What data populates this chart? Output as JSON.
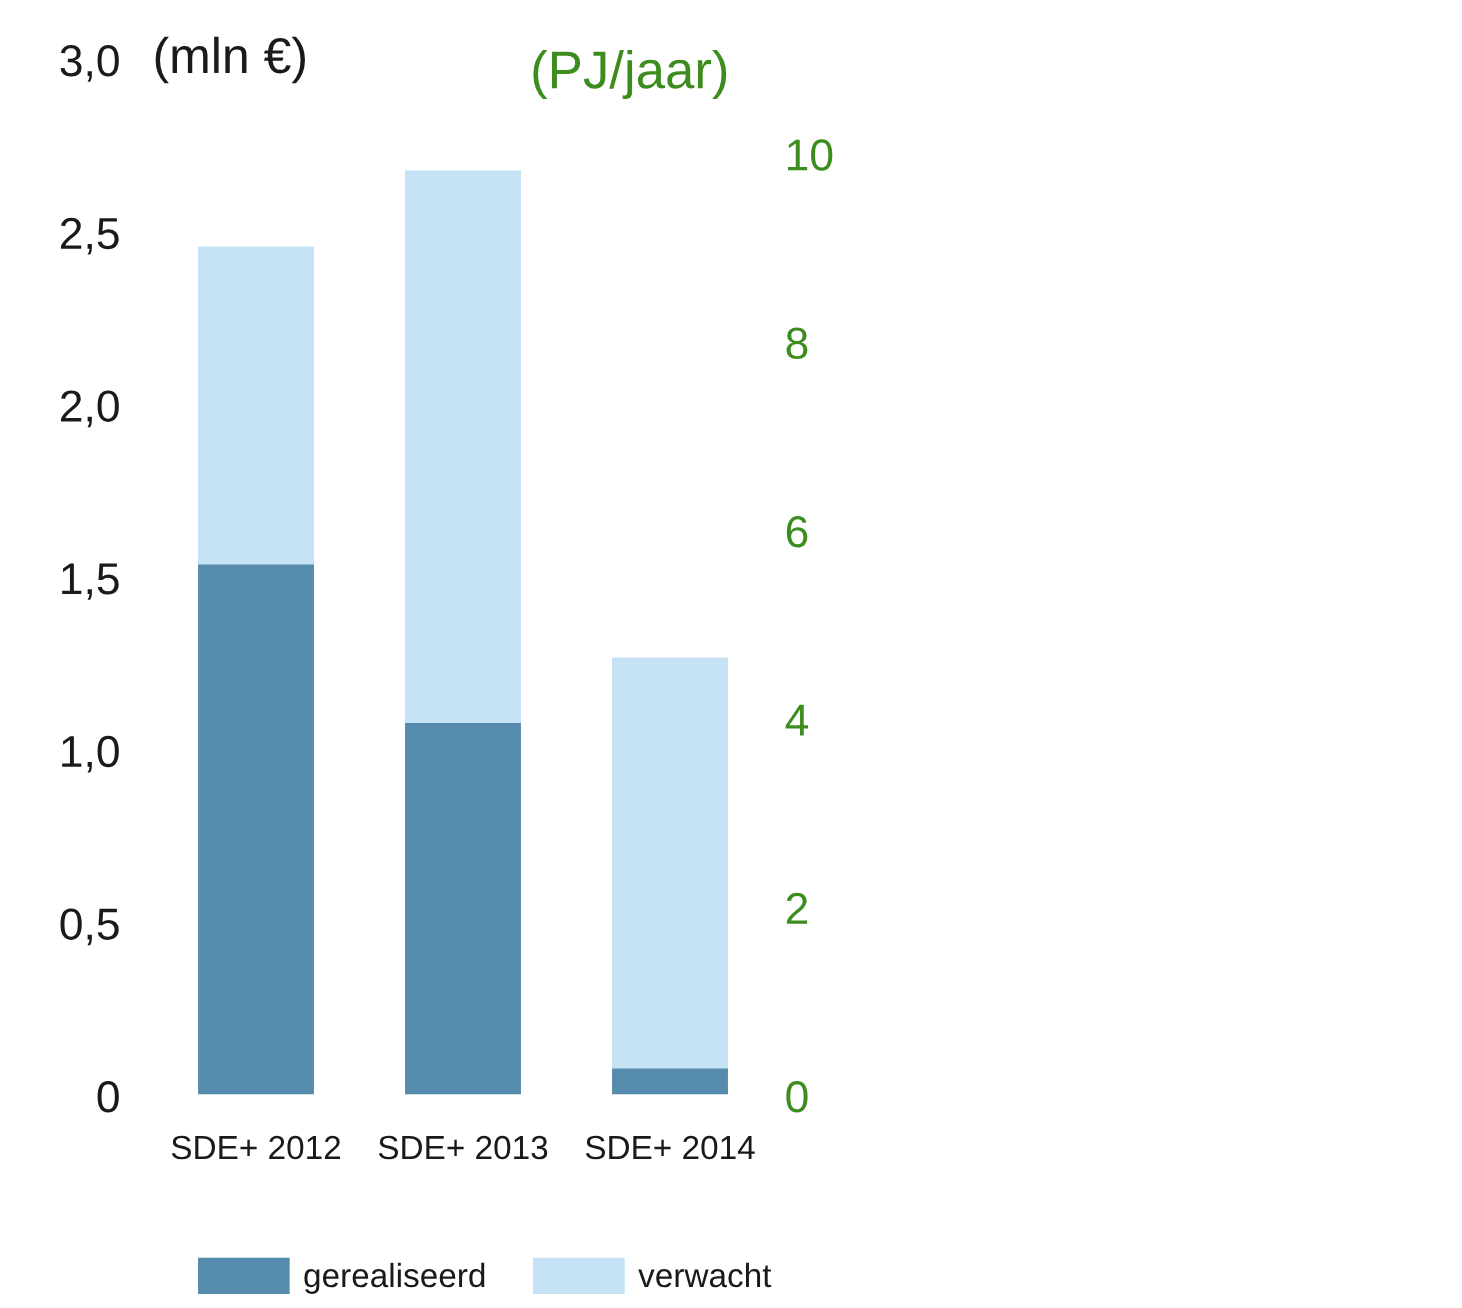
{
  "chart_data": {
    "type": "bar",
    "stacked": true,
    "categories": [
      "SDE+ 2012",
      "SDE+ 2013",
      "SDE+ 2014"
    ],
    "series": [
      {
        "name": "gerealiseerd",
        "color": "#558cae",
        "values": [
          1.54,
          1.08,
          0.08
        ]
      },
      {
        "name": "verwacht",
        "color": "#c4e2f3",
        "values": [
          0.92,
          1.6,
          1.19
        ]
      }
    ],
    "ylabel": "(mln €)",
    "y2label": "(PJ/jaar)",
    "ylim": [
      0,
      3.0
    ],
    "yticks": [
      0,
      {
        "value": 0.5,
        "label": "0,5"
      },
      {
        "value": 1.0,
        "label": "1,0"
      },
      {
        "value": 1.5,
        "label": "1,5"
      },
      {
        "value": 2.0,
        "label": "2,0"
      },
      {
        "value": 2.5,
        "label": "2,5"
      },
      {
        "value": 3.0,
        "label": "3,0"
      }
    ],
    "y2lim": [
      0,
      11
    ],
    "y2ticks": [
      0,
      2,
      4,
      6,
      8,
      10
    ],
    "legend": "bottom"
  }
}
